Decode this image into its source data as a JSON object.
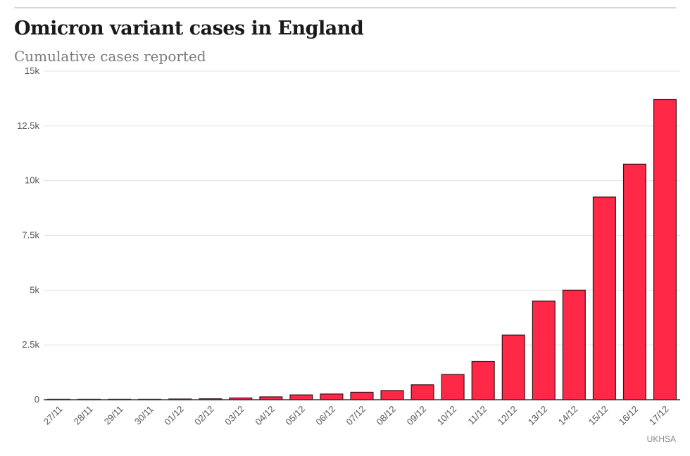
{
  "header": {
    "title": "Omicron variant cases in England",
    "subtitle": "Cumulative cases reported"
  },
  "footer": {
    "source": "UKHSA"
  },
  "chart_data": {
    "type": "bar",
    "title": "Omicron variant cases in England",
    "subtitle": "Cumulative cases reported",
    "xlabel": "",
    "ylabel": "",
    "categories": [
      "27/11",
      "28/11",
      "29/11",
      "30/11",
      "01/12",
      "02/12",
      "03/12",
      "04/12",
      "05/12",
      "06/12",
      "07/12",
      "08/12",
      "09/12",
      "10/12",
      "11/12",
      "12/12",
      "13/12",
      "14/12",
      "15/12",
      "16/12",
      "17/12"
    ],
    "values": [
      2,
      5,
      9,
      14,
      32,
      42,
      80,
      130,
      220,
      260,
      340,
      420,
      680,
      1150,
      1750,
      2950,
      4500,
      5000,
      9250,
      10750,
      13700
    ],
    "ylim": [
      0,
      15000
    ],
    "y_ticks": [
      0,
      2500,
      5000,
      7500,
      10000,
      12500,
      15000
    ],
    "y_tick_labels": [
      "0",
      "2.5k",
      "5k",
      "7.5k",
      "10k",
      "12.5k",
      "15k"
    ],
    "grid": true,
    "colors": {
      "bar_fill": "#ff2847",
      "bar_stroke": "#3a1016",
      "gridline": "#e3e3e3",
      "axis": "#333333",
      "tick_text": "#555555"
    }
  }
}
